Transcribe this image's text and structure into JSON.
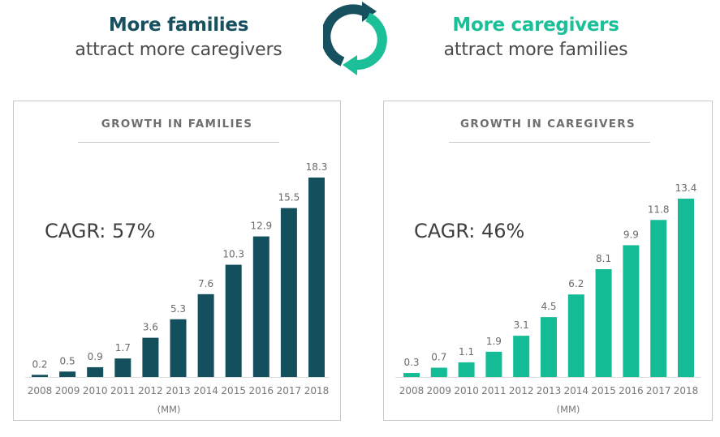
{
  "header": {
    "left": {
      "bold": "More families",
      "sub": "attract more caregivers"
    },
    "right": {
      "bold": "More caregivers",
      "sub": "attract more families"
    },
    "icon": "refresh-cycle-icon"
  },
  "colors": {
    "families": "#144f5e",
    "caregivers": "#14bc96"
  },
  "chart_data": [
    {
      "type": "bar",
      "title": "GROWTH IN FAMILIES",
      "annotation": "CAGR: 57%",
      "categories": [
        "2008",
        "2009",
        "2010",
        "2011",
        "2012",
        "2013",
        "2014",
        "2015",
        "2016",
        "2017",
        "2018"
      ],
      "values": [
        0.2,
        0.5,
        0.9,
        1.7,
        3.6,
        5.3,
        7.6,
        10.3,
        12.9,
        15.5,
        18.3
      ],
      "value_labels": [
        "0.2",
        "0.5",
        "0.9",
        "1.7",
        "3.6",
        "5.3",
        "7.6",
        "10.3",
        "12.9",
        "15.5",
        "18.3"
      ],
      "xlabel": "(MM)",
      "ylabel": "",
      "ylim": [
        0,
        18.3
      ],
      "grid": false,
      "color": "#144f5e"
    },
    {
      "type": "bar",
      "title": "GROWTH IN CAREGIVERS",
      "annotation": "CAGR: 46%",
      "categories": [
        "2008",
        "2009",
        "2010",
        "2011",
        "2012",
        "2013",
        "2014",
        "2015",
        "2016",
        "2017",
        "2018"
      ],
      "values": [
        0.3,
        0.7,
        1.1,
        1.9,
        3.1,
        4.5,
        6.2,
        8.1,
        9.9,
        11.8,
        13.4
      ],
      "value_labels": [
        "0.3",
        "0.7",
        "1.1",
        "1.9",
        "3.1",
        "4.5",
        "6.2",
        "8.1",
        "9.9",
        "11.8",
        "13.4"
      ],
      "xlabel": "(MM)",
      "ylabel": "",
      "ylim": [
        0,
        13.4
      ],
      "grid": false,
      "color": "#14bc96"
    }
  ]
}
